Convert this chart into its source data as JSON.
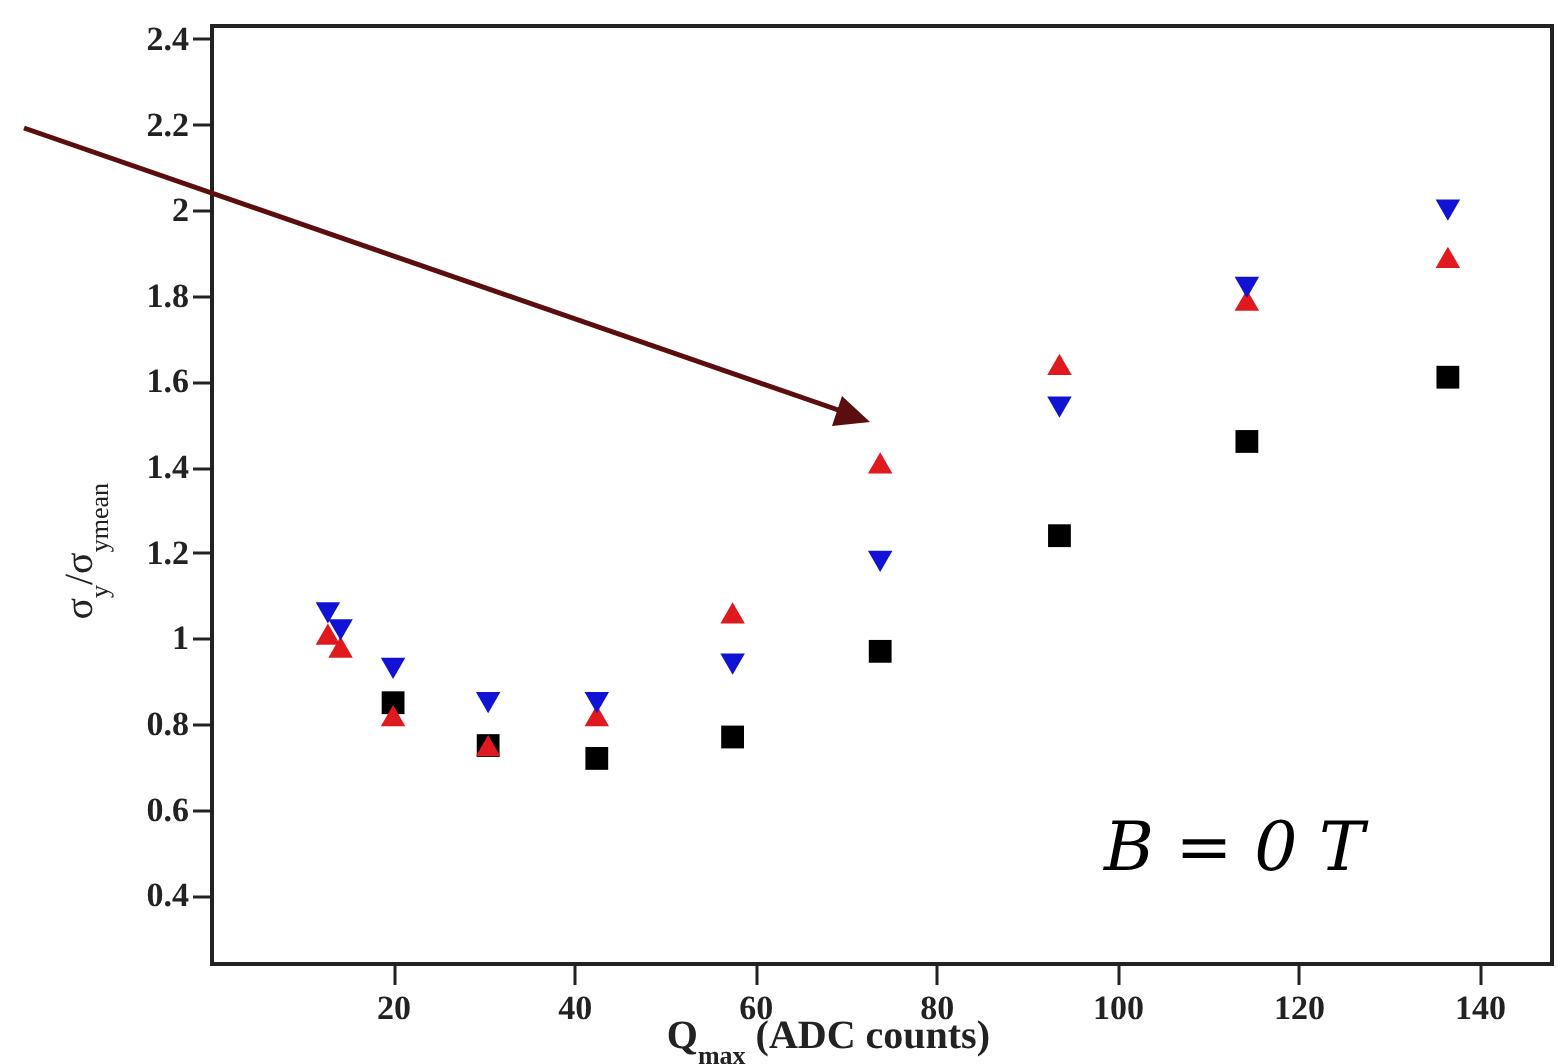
{
  "chart_data": {
    "type": "scatter",
    "xlabel": "Q$_{max}$ (ADC counts)",
    "ylabel": "σ$_{y}$/σ$_{ymean}$",
    "annotations": [
      "B = 0 T"
    ],
    "x": [
      12.8,
      14.2,
      20,
      30.5,
      42.5,
      57.5,
      73.8,
      93.6,
      114.3,
      136.5
    ],
    "series": [
      {
        "color": "#000000",
        "marker": "square",
        "values": [
          null,
          null,
          0.85,
          0.75,
          0.72,
          0.77,
          0.97,
          1.24,
          1.46,
          1.61
        ]
      },
      {
        "color": "#e0191e",
        "marker": "triangle",
        "values": [
          1.01,
          0.98,
          0.82,
          0.75,
          0.82,
          1.06,
          1.41,
          1.64,
          1.79,
          1.89
        ]
      },
      {
        "color": "#1212d4",
        "marker": "triangle-down",
        "values": [
          1.06,
          1.02,
          0.93,
          0.85,
          0.85,
          0.94,
          1.18,
          1.54,
          1.82,
          2.0
        ]
      }
    ],
    "xlim": [
      0,
      148
    ],
    "xticks": [
      20,
      40,
      60,
      80,
      100,
      120,
      140
    ],
    "ylim": [
      0.24,
      2.43
    ],
    "yticks": [
      0.4,
      0.6,
      0.8,
      1,
      1.2,
      1.4,
      1.6,
      1.8,
      2,
      2.2,
      2.4
    ],
    "grid": false
  }
}
